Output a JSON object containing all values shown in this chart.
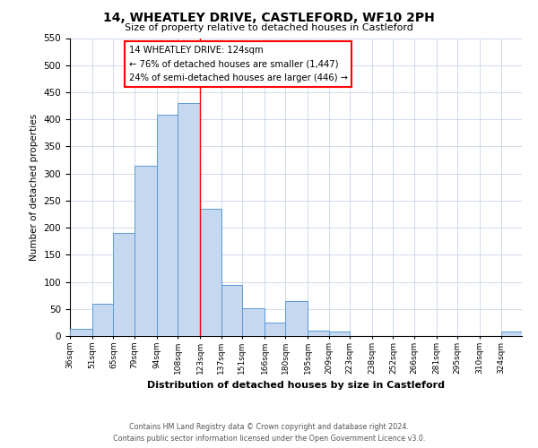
{
  "title": "14, WHEATLEY DRIVE, CASTLEFORD, WF10 2PH",
  "subtitle": "Size of property relative to detached houses in Castleford",
  "xlabel": "Distribution of detached houses by size in Castleford",
  "ylabel": "Number of detached properties",
  "bin_labels": [
    "36sqm",
    "51sqm",
    "65sqm",
    "79sqm",
    "94sqm",
    "108sqm",
    "123sqm",
    "137sqm",
    "151sqm",
    "166sqm",
    "180sqm",
    "195sqm",
    "209sqm",
    "223sqm",
    "238sqm",
    "252sqm",
    "266sqm",
    "281sqm",
    "295sqm",
    "310sqm",
    "324sqm"
  ],
  "bin_edges": [
    36,
    51,
    65,
    79,
    94,
    108,
    123,
    137,
    151,
    166,
    180,
    195,
    209,
    223,
    238,
    252,
    266,
    281,
    295,
    310,
    324,
    338
  ],
  "bar_heights": [
    13,
    60,
    190,
    315,
    408,
    430,
    235,
    95,
    52,
    25,
    65,
    10,
    8,
    0,
    0,
    0,
    0,
    0,
    0,
    0,
    8
  ],
  "bar_color": "#c5d8f0",
  "bar_edge_color": "#5b9bd5",
  "property_line_x": 123,
  "ylim": [
    0,
    550
  ],
  "yticks": [
    0,
    50,
    100,
    150,
    200,
    250,
    300,
    350,
    400,
    450,
    500,
    550
  ],
  "annotation_title": "14 WHEATLEY DRIVE: 124sqm",
  "annotation_line1": "← 76% of detached houses are smaller (1,447)",
  "annotation_line2": "24% of semi-detached houses are larger (446) →",
  "footnote1": "Contains HM Land Registry data © Crown copyright and database right 2024.",
  "footnote2": "Contains public sector information licensed under the Open Government Licence v3.0.",
  "background_color": "#ffffff",
  "grid_color": "#c8d4e8"
}
